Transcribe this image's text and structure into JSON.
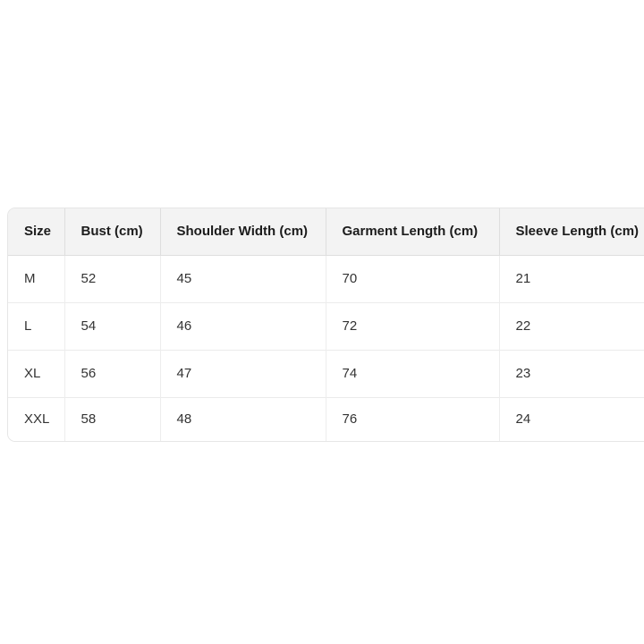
{
  "colors": {
    "page_bg": "#ffffff",
    "header_bg": "#f3f3f3",
    "header_text": "#1c1c1c",
    "body_text": "#333333",
    "border_outer": "#e6e6e6"
  },
  "size_chart": {
    "columns": [
      "Size",
      "Bust (cm)",
      "Shoulder Width (cm)",
      "Garment Length (cm)",
      "Sleeve Length (cm)"
    ],
    "rows": [
      [
        "M",
        "52",
        "45",
        "70",
        "21"
      ],
      [
        "L",
        "54",
        "46",
        "72",
        "22"
      ],
      [
        "XL",
        "56",
        "47",
        "74",
        "23"
      ],
      [
        "XXL",
        "58",
        "48",
        "76",
        "24"
      ]
    ]
  }
}
